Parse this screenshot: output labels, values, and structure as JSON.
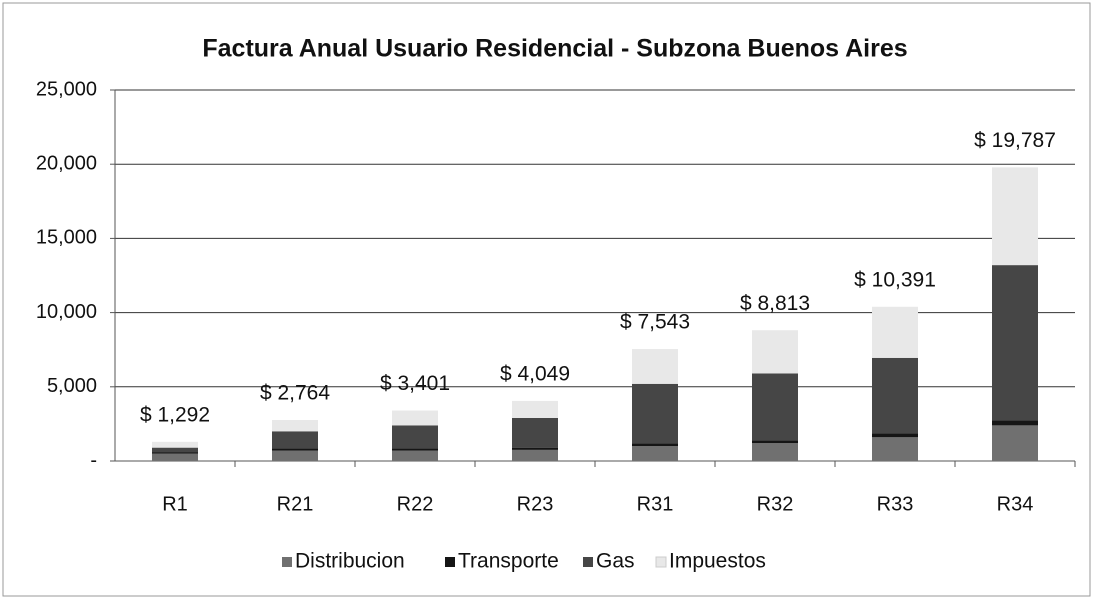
{
  "chart_data": {
    "type": "stacked_bar",
    "title": "Factura Anual Usuario Residencial - Subzona Buenos Aires",
    "categories": [
      "R1",
      "R21",
      "R22",
      "R23",
      "R31",
      "R32",
      "R33",
      "R34"
    ],
    "series": [
      {
        "name": "Distribucion",
        "color": "#707070",
        "values": [
          500,
          700,
          700,
          750,
          1000,
          1200,
          1600,
          2400
        ]
      },
      {
        "name": "Transporte",
        "color": "#151515",
        "values": [
          100,
          150,
          150,
          150,
          200,
          200,
          250,
          350
        ]
      },
      {
        "name": "Gas",
        "color": "#464646",
        "values": [
          300,
          1150,
          1550,
          2000,
          4000,
          4500,
          5100,
          10450
        ]
      },
      {
        "name": "Impuestos",
        "color": "#e8e8e8",
        "values": [
          392,
          764,
          1001,
          1149,
          2343,
          2913,
          3441,
          6587
        ]
      }
    ],
    "totals": [
      1292,
      2764,
      3401,
      4049,
      7543,
      8813,
      10391,
      19787
    ],
    "total_labels": [
      "$ 1,292",
      "$ 2,764",
      "$ 3,401",
      "$ 4,049",
      "$ 7,543",
      "$ 8,813",
      "$ 10,391",
      "$ 19,787"
    ],
    "ylim": [
      0,
      25000
    ],
    "yticks": [
      {
        "value": 0,
        "label": "-"
      },
      {
        "value": 5000,
        "label": "5,000"
      },
      {
        "value": 10000,
        "label": "10,000"
      },
      {
        "value": 15000,
        "label": "15,000"
      },
      {
        "value": 20000,
        "label": "20,000"
      },
      {
        "value": 25000,
        "label": "25,000"
      }
    ],
    "grid": true,
    "legend": "bottom"
  }
}
